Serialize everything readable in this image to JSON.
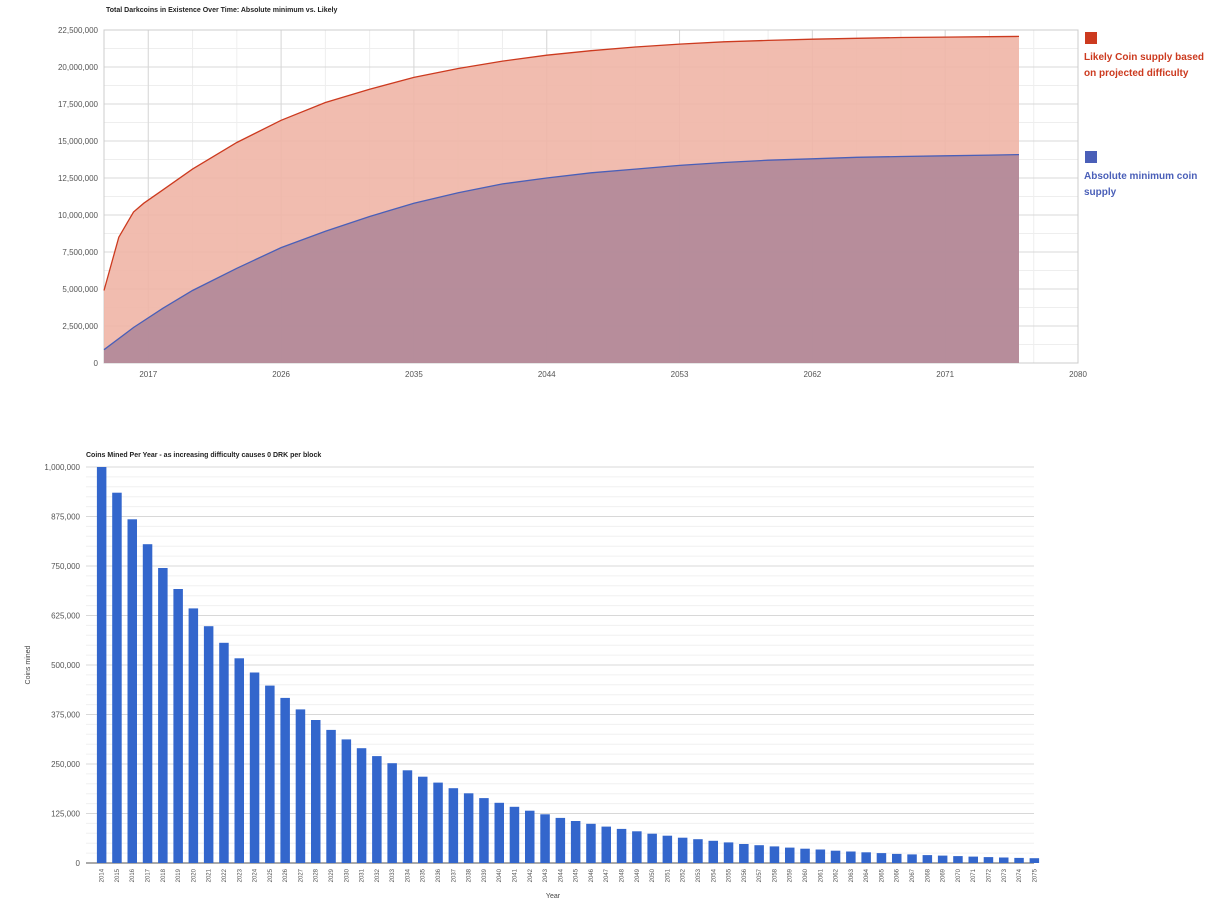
{
  "chart_data": [
    {
      "type": "area",
      "title": "Total Darkcoins in Existence Over Time: Absolute minimum vs. Likely",
      "xlabel": "",
      "ylabel": "",
      "xlim": [
        2014,
        2080
      ],
      "ylim": [
        0,
        22500000
      ],
      "x_ticks": [
        2017,
        2026,
        2035,
        2044,
        2053,
        2062,
        2071,
        2080
      ],
      "y_ticks": [
        0,
        2500000,
        5000000,
        7500000,
        10000000,
        12500000,
        15000000,
        17500000,
        20000000,
        22500000
      ],
      "y_tick_labels": [
        "0",
        "2,500,000",
        "5,000,000",
        "7,500,000",
        "10,000,000",
        "12,500,000",
        "15,000,000",
        "17,500,000",
        "20,000,000",
        "22,500,000"
      ],
      "grid": true,
      "legend_position": "right",
      "series": [
        {
          "name": "Likely Coin supply based on projected difficulty",
          "color": "#cc3a1f",
          "fill": "#f0b5a6",
          "x": [
            2014,
            2015,
            2016,
            2016.7,
            2018,
            2020,
            2023,
            2026,
            2029,
            2032,
            2035,
            2038,
            2041,
            2044,
            2047,
            2050,
            2053,
            2056,
            2059,
            2062,
            2065,
            2068,
            2071,
            2074,
            2076
          ],
          "values": [
            4900000,
            8500000,
            10200000,
            10800000,
            11700000,
            13100000,
            14900000,
            16400000,
            17600000,
            18500000,
            19300000,
            19900000,
            20400000,
            20800000,
            21100000,
            21350000,
            21550000,
            21700000,
            21800000,
            21880000,
            21940000,
            21990000,
            22020000,
            22050000,
            22070000
          ]
        },
        {
          "name": "Absolute minimum coin supply",
          "color": "#4a5fb8",
          "fill": "#b38a9a",
          "x": [
            2014,
            2016,
            2018,
            2020,
            2023,
            2026,
            2029,
            2032,
            2035,
            2038,
            2041,
            2044,
            2047,
            2050,
            2053,
            2056,
            2059,
            2062,
            2065,
            2068,
            2071,
            2074,
            2076
          ],
          "values": [
            900000,
            2400000,
            3700000,
            4900000,
            6400000,
            7800000,
            8900000,
            9900000,
            10800000,
            11500000,
            12100000,
            12500000,
            12850000,
            13100000,
            13350000,
            13550000,
            13700000,
            13800000,
            13900000,
            13950000,
            14000000,
            14050000,
            14080000
          ]
        }
      ]
    },
    {
      "type": "bar",
      "title": "Coins Mined Per Year - as increasing difficulty causes 0 DRK per block",
      "xlabel": "Year",
      "ylabel": "Coins mined",
      "ylim": [
        0,
        1000000
      ],
      "y_ticks": [
        0,
        125000,
        250000,
        375000,
        500000,
        625000,
        750000,
        875000,
        1000000
      ],
      "y_tick_labels": [
        "0",
        "125,000",
        "250,000",
        "375,000",
        "500,000",
        "625,000",
        "750,000",
        "875,000",
        "1,000,000"
      ],
      "grid": true,
      "color": "#3366cc",
      "categories": [
        "2014",
        "2015",
        "2016",
        "2017",
        "2018",
        "2019",
        "2020",
        "2021",
        "2022",
        "2023",
        "2024",
        "2025",
        "2026",
        "2027",
        "2028",
        "2029",
        "2030",
        "2031",
        "2032",
        "2033",
        "2034",
        "2035",
        "2036",
        "2037",
        "2038",
        "2039",
        "2040",
        "2041",
        "2042",
        "2043",
        "2044",
        "2045",
        "2046",
        "2047",
        "2048",
        "2049",
        "2050",
        "2051",
        "2052",
        "2053",
        "2054",
        "2055",
        "2056",
        "2057",
        "2058",
        "2059",
        "2060",
        "2061",
        "2062",
        "2063",
        "2064",
        "2065",
        "2066",
        "2067",
        "2068",
        "2069",
        "2070",
        "2071",
        "2072",
        "2073",
        "2074",
        "2075"
      ],
      "values": [
        1000000,
        935000,
        868000,
        805000,
        745000,
        692000,
        643000,
        598000,
        556000,
        517000,
        481000,
        448000,
        417000,
        388000,
        361000,
        336000,
        312000,
        290000,
        270000,
        252000,
        234000,
        218000,
        203000,
        189000,
        176000,
        164000,
        152000,
        142000,
        132000,
        123000,
        114000,
        106000,
        99000,
        92000,
        86000,
        80000,
        74000,
        69000,
        64000,
        60000,
        56000,
        52000,
        48000,
        45000,
        42000,
        39000,
        36000,
        34000,
        31000,
        29000,
        27000,
        25000,
        23000,
        21600,
        20000,
        18600,
        17300,
        16100,
        15000,
        14000,
        13000,
        12100
      ]
    }
  ]
}
